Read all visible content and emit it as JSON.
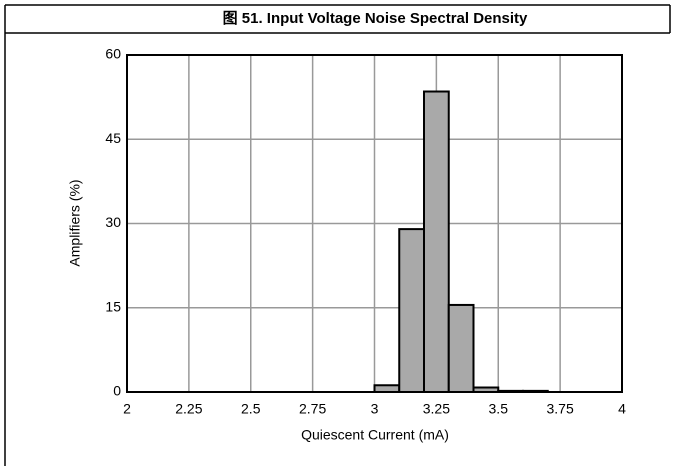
{
  "chart_data": {
    "type": "histogram",
    "title": "图 51. Input Voltage Noise Spectral Density",
    "xlabel": "Quiescent Current (mA)",
    "ylabel": "Amplifiers (%)",
    "bins": [
      3.0,
      3.1,
      3.2,
      3.3,
      3.4,
      3.5,
      3.6,
      3.7
    ],
    "values": [
      1.2,
      29,
      53.5,
      15.5,
      0.8,
      0.2,
      0.2
    ],
    "color": "#a9a9a9",
    "xlim": [
      2,
      4
    ],
    "xticks": [
      2,
      2.25,
      2.5,
      2.75,
      3,
      3.25,
      3.5,
      3.75,
      4
    ],
    "ylim": [
      0,
      60
    ],
    "yticks": [
      0,
      15,
      30,
      45,
      60
    ],
    "grid": true
  }
}
